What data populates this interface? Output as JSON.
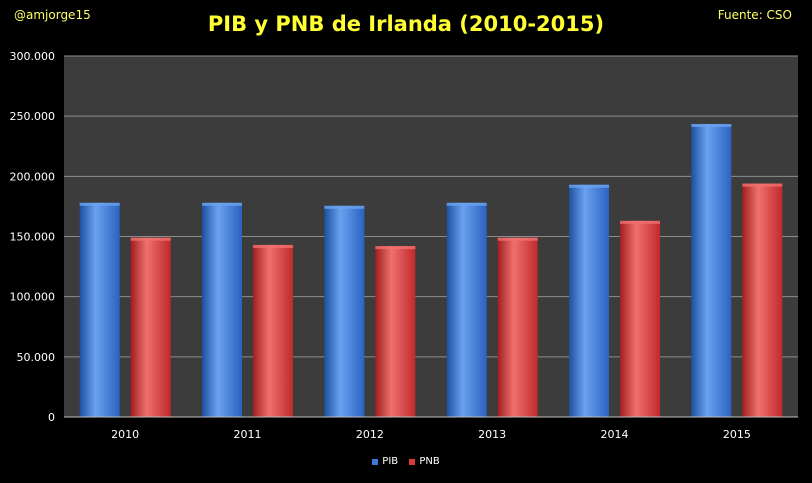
{
  "header": {
    "author": "@amjorge15",
    "title": "PIB y PNB de Irlanda (2010-2015)",
    "source": "Fuente: CSO"
  },
  "chart_data": {
    "type": "bar",
    "categories": [
      "2010",
      "2011",
      "2012",
      "2013",
      "2014",
      "2015"
    ],
    "series": [
      {
        "name": "PIB",
        "color": "#3a78d8",
        "values": [
          178000,
          178000,
          175500,
          178000,
          193000,
          243500
        ]
      },
      {
        "name": "PNB",
        "color": "#d83a3a",
        "values": [
          149000,
          143000,
          142000,
          149000,
          163000,
          194000
        ]
      }
    ],
    "ylim": [
      0,
      300000
    ],
    "yticks": [
      0,
      50000,
      100000,
      150000,
      200000,
      250000,
      300000
    ],
    "ytick_labels": [
      "0",
      "50.000",
      "100.000",
      "150.000",
      "200.000",
      "250.000",
      "300.000"
    ],
    "grid": true,
    "legend_position": "bottom",
    "plot_background": "#3c3c3c",
    "axis_label_color": "#ffffff"
  }
}
